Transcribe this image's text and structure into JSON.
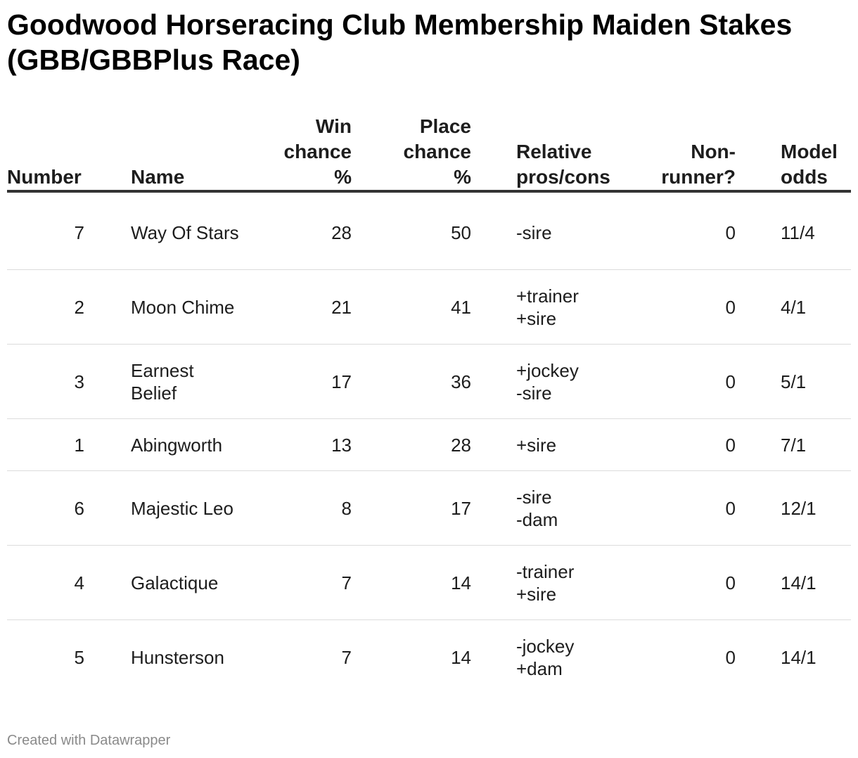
{
  "chart_data": {
    "type": "table",
    "title": "Goodwood Horseracing Club Membership Maiden Stakes (GBB/GBBPlus Race)",
    "columns": [
      "Number",
      "Name",
      "Win chance %",
      "Place chance %",
      "Relative pros/cons",
      "Non-runner?",
      "Model odds"
    ],
    "rows": [
      {
        "number": "7",
        "name": "Way Of Stars",
        "win": "28",
        "place": "50",
        "rel": "-sire",
        "nr": "0",
        "odds": "11/4"
      },
      {
        "number": "2",
        "name": "Moon Chime",
        "win": "21",
        "place": "41",
        "rel": "+trainer\n+sire",
        "nr": "0",
        "odds": "4/1"
      },
      {
        "number": "3",
        "name": "Earnest Belief",
        "win": "17",
        "place": "36",
        "rel": "+jockey\n-sire",
        "nr": "0",
        "odds": "5/1"
      },
      {
        "number": "1",
        "name": "Abingworth",
        "win": "13",
        "place": "28",
        "rel": "+sire",
        "nr": "0",
        "odds": "7/1"
      },
      {
        "number": "6",
        "name": "Majestic Leo",
        "win": "8",
        "place": "17",
        "rel": "-sire\n-dam",
        "nr": "0",
        "odds": "12/1"
      },
      {
        "number": "4",
        "name": "Galactique",
        "win": "7",
        "place": "14",
        "rel": "-trainer\n+sire",
        "nr": "0",
        "odds": "14/1"
      },
      {
        "number": "5",
        "name": "Hunsterson",
        "win": "7",
        "place": "14",
        "rel": "-jockey\n+dam",
        "nr": "0",
        "odds": "14/1"
      }
    ]
  },
  "header": {
    "number": "Number",
    "name": "Name",
    "win": "Win\nchance\n%",
    "place": "Place\nchance\n%",
    "rel": "Relative\npros/cons",
    "nr": "Non-\nrunner?",
    "odds": "Model\nodds"
  },
  "footer": "Created with Datawrapper"
}
